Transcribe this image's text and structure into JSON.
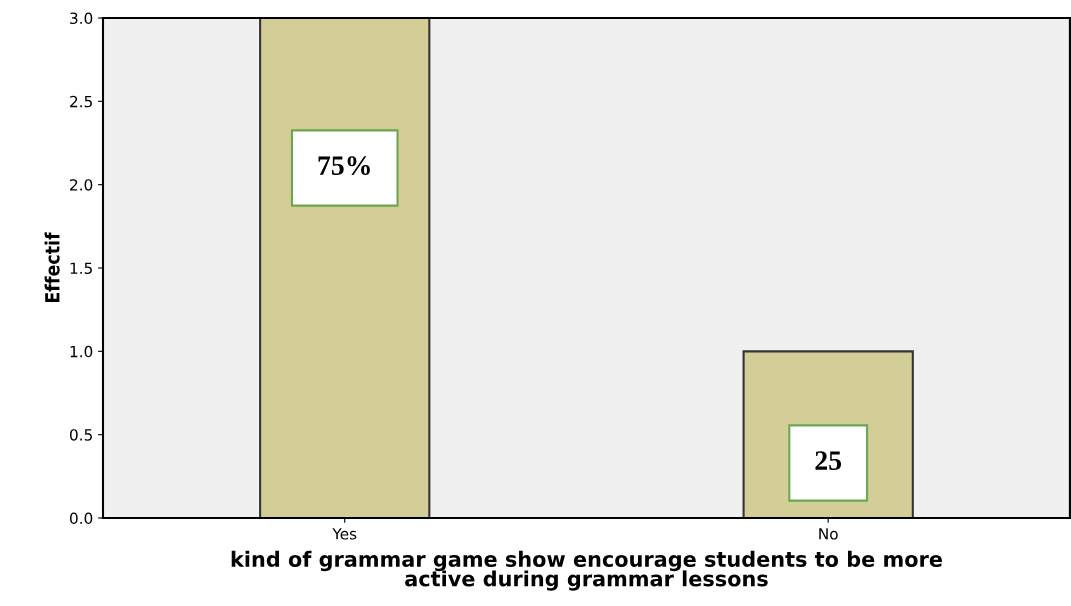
{
  "chart_data": {
    "type": "bar",
    "xlabel": "kind of grammar game show encourage students to be more\nactive during grammar lessons",
    "ylabel": "Effectif",
    "categories": [
      "Yes",
      "No"
    ],
    "values": [
      3,
      1
    ],
    "color": "#d3ce97",
    "ylim": [
      0,
      3
    ],
    "yticks": [
      {
        "value": 0,
        "label": "0.0"
      },
      {
        "value": 0.5,
        "label": "0.5"
      },
      {
        "value": 1,
        "label": "1.0"
      },
      {
        "value": 1.5,
        "label": "1.5"
      },
      {
        "value": 2,
        "label": "2.0"
      },
      {
        "value": 2.5,
        "label": "2.5"
      },
      {
        "value": 3,
        "label": "3.0"
      }
    ],
    "annotations": [
      "75%",
      "25"
    ],
    "grid": false
  }
}
